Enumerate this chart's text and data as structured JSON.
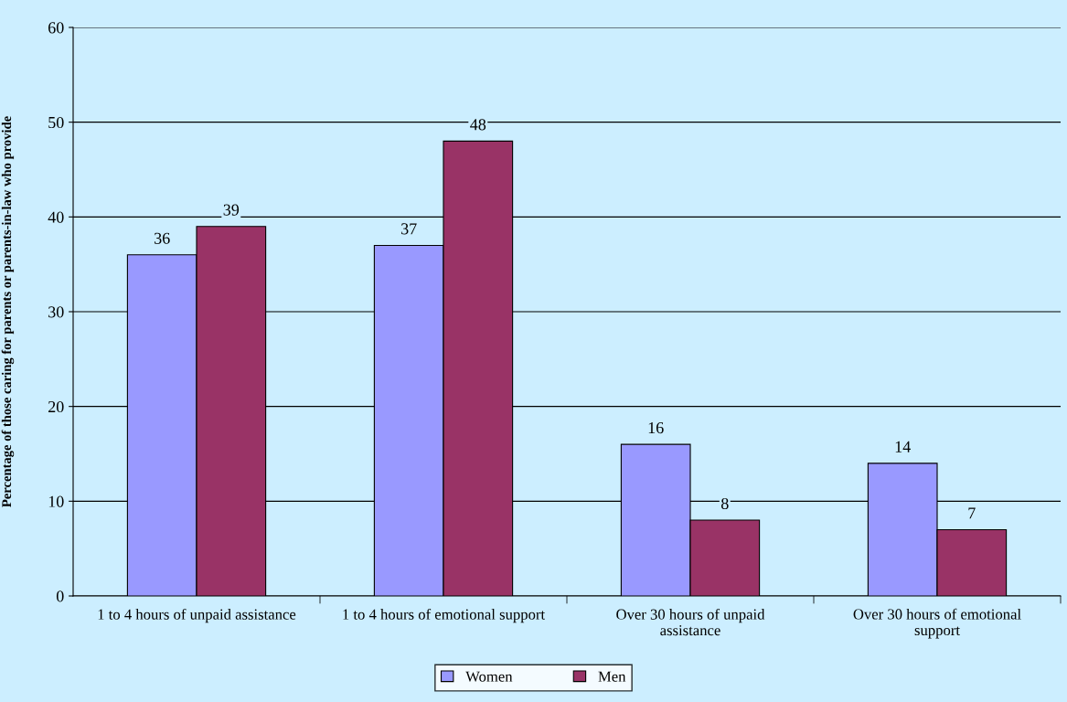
{
  "chart_data": {
    "type": "bar",
    "ylabel": "Percentage of those caring for parents or parents-in-law who provide",
    "categories": [
      "1 to 4 hours of unpaid assistance",
      "1 to 4 hours of emotional support",
      "Over 30 hours of unpaid\nassistance",
      "Over 30 hours of emotional\nsupport"
    ],
    "series": [
      {
        "name": "Women",
        "color": "#9999ff",
        "values": [
          36,
          37,
          16,
          14
        ]
      },
      {
        "name": "Men",
        "color": "#993366",
        "values": [
          39,
          48,
          8,
          7
        ]
      }
    ],
    "ylim": [
      0,
      60
    ],
    "yticks": [
      0,
      10,
      20,
      30,
      40,
      50,
      60
    ],
    "grid": "y",
    "legend": "bottom",
    "data_labels": true
  }
}
